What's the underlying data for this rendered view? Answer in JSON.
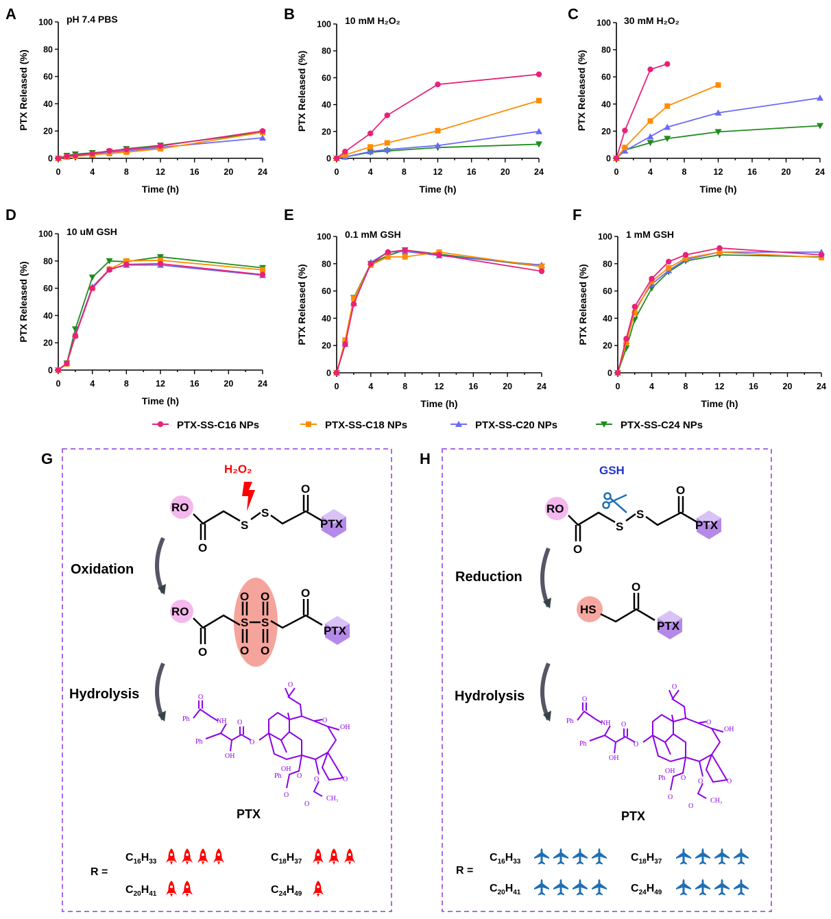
{
  "legend": {
    "position": "bottom",
    "items": [
      {
        "name": "PTX-SS-C16 NPs",
        "color": "#E8217A",
        "marker": "circle"
      },
      {
        "name": "PTX-SS-C18 NPs",
        "color": "#FF8C00",
        "marker": "square"
      },
      {
        "name": "PTX-SS-C20 NPs",
        "color": "#6A6AF5",
        "marker": "triangle-up"
      },
      {
        "name": "PTX-SS-C24 NPs",
        "color": "#1E8C1E",
        "marker": "triangle-down"
      }
    ]
  },
  "chart_data": [
    {
      "panel": "A",
      "type": "line",
      "title": "pH 7.4 PBS",
      "xlabel": "Time (h)",
      "ylabel": "PTX Released (%)",
      "xlim": [
        0,
        24
      ],
      "ylim": [
        0,
        100
      ],
      "xticks": [
        0,
        4,
        8,
        12,
        16,
        20,
        24
      ],
      "yticks": [
        0,
        20,
        40,
        60,
        80,
        100
      ],
      "grid": false,
      "x": [
        0,
        1,
        2,
        4,
        6,
        8,
        12,
        24
      ],
      "series": [
        {
          "name": "PTX-SS-C16 NPs",
          "values": [
            0,
            1.5,
            2,
            3.5,
            5.5,
            6.5,
            9,
            20
          ]
        },
        {
          "name": "PTX-SS-C18 NPs",
          "values": [
            0,
            1,
            1.5,
            2.5,
            3.5,
            4.5,
            7,
            19
          ]
        },
        {
          "name": "PTX-SS-C20 NPs",
          "values": [
            0,
            1,
            2,
            3,
            4.5,
            5.5,
            8,
            15
          ]
        },
        {
          "name": "PTX-SS-C24 NPs",
          "values": [
            0,
            2,
            3,
            4,
            5,
            7,
            9.5,
            19
          ]
        }
      ]
    },
    {
      "panel": "B",
      "type": "line",
      "title": "10 mM H₂O₂",
      "xlabel": "Time (h)",
      "ylabel": "PTX Released (%)",
      "xlim": [
        0,
        24
      ],
      "ylim": [
        0,
        100
      ],
      "xticks": [
        0,
        4,
        8,
        12,
        16,
        20,
        24
      ],
      "yticks": [
        0,
        20,
        40,
        60,
        80,
        100
      ],
      "grid": false,
      "x": [
        0,
        1,
        4,
        6,
        12,
        24
      ],
      "series": [
        {
          "name": "PTX-SS-C16 NPs",
          "values": [
            0,
            5,
            18.5,
            32,
            55,
            62.5
          ]
        },
        {
          "name": "PTX-SS-C18 NPs",
          "values": [
            0,
            2.5,
            8.5,
            11.5,
            20.5,
            43
          ]
        },
        {
          "name": "PTX-SS-C20 NPs",
          "values": [
            0,
            1,
            5,
            6.5,
            9.5,
            20
          ]
        },
        {
          "name": "PTX-SS-C24 NPs",
          "values": [
            0,
            1,
            4.5,
            5.5,
            8,
            10.5
          ]
        }
      ]
    },
    {
      "panel": "C",
      "type": "line",
      "title": "30 mM H₂O₂",
      "xlabel": "Time (h)",
      "ylabel": "PTX Released (%)",
      "xlim": [
        0,
        24
      ],
      "ylim": [
        0,
        100
      ],
      "xticks": [
        0,
        4,
        8,
        12,
        16,
        20,
        24
      ],
      "yticks": [
        0,
        20,
        40,
        60,
        80,
        100
      ],
      "grid": false,
      "x": [
        0,
        1,
        4,
        6,
        12,
        24
      ],
      "series": [
        {
          "name": "PTX-SS-C16 NPs",
          "values": [
            0,
            20.5,
            65.5,
            69.5,
            null,
            null
          ]
        },
        {
          "name": "PTX-SS-C18 NPs",
          "values": [
            0,
            8,
            27.5,
            38.5,
            54,
            null
          ]
        },
        {
          "name": "PTX-SS-C20 NPs",
          "values": [
            0,
            5.5,
            16,
            23,
            33.5,
            44.5
          ]
        },
        {
          "name": "PTX-SS-C24 NPs",
          "values": [
            0,
            6,
            11.5,
            14.5,
            19.5,
            24
          ]
        }
      ]
    },
    {
      "panel": "D",
      "type": "line",
      "title": "10 uM GSH",
      "xlabel": "Time (h)",
      "ylabel": "PTX Released (%)",
      "xlim": [
        0,
        24
      ],
      "ylim": [
        0,
        100
      ],
      "xticks": [
        0,
        4,
        8,
        12,
        16,
        20,
        24
      ],
      "yticks": [
        0,
        20,
        40,
        60,
        80,
        100
      ],
      "grid": false,
      "x": [
        0,
        1,
        2,
        4,
        6,
        8,
        12,
        24
      ],
      "series": [
        {
          "name": "PTX-SS-C16 NPs",
          "values": [
            0,
            5,
            25,
            60,
            73.5,
            77.5,
            78,
            70
          ]
        },
        {
          "name": "PTX-SS-C18 NPs",
          "values": [
            0,
            4.5,
            25,
            60,
            74,
            80,
            80.5,
            73.5
          ]
        },
        {
          "name": "PTX-SS-C20 NPs",
          "values": [
            0,
            5,
            26,
            61,
            74,
            77,
            77,
            69.5
          ]
        },
        {
          "name": "PTX-SS-C24 NPs",
          "values": [
            0,
            5,
            30,
            68,
            80,
            79.5,
            83,
            75
          ]
        }
      ]
    },
    {
      "panel": "E",
      "type": "line",
      "title": "0.1 mM GSH",
      "xlabel": "Time (h)",
      "ylabel": "PTX Released (%)",
      "xlim": [
        0,
        24
      ],
      "ylim": [
        0,
        100
      ],
      "xticks": [
        0,
        4,
        8,
        12,
        16,
        20,
        24
      ],
      "yticks": [
        0,
        20,
        40,
        60,
        80,
        100
      ],
      "grid": false,
      "x": [
        0,
        1,
        2,
        4,
        6,
        8,
        12,
        24
      ],
      "series": [
        {
          "name": "PTX-SS-C16 NPs",
          "values": [
            0,
            21,
            50.5,
            80,
            88.5,
            90,
            86.5,
            74.5
          ]
        },
        {
          "name": "PTX-SS-C18 NPs",
          "values": [
            0,
            24,
            54.5,
            79,
            85,
            85,
            88.5,
            78
          ]
        },
        {
          "name": "PTX-SS-C20 NPs",
          "values": [
            0,
            21,
            51,
            81,
            88.5,
            89,
            86,
            79
          ]
        },
        {
          "name": "PTX-SS-C24 NPs",
          "values": [
            0,
            21,
            55,
            80,
            86,
            90,
            87,
            78
          ]
        }
      ]
    },
    {
      "panel": "F",
      "type": "line",
      "title": "1 mM GSH",
      "xlabel": "Time (h)",
      "ylabel": "PTX Released (%)",
      "xlim": [
        0,
        24
      ],
      "ylim": [
        0,
        100
      ],
      "xticks": [
        0,
        4,
        8,
        12,
        16,
        20,
        24
      ],
      "yticks": [
        0,
        20,
        40,
        60,
        80,
        100
      ],
      "grid": false,
      "x": [
        0,
        1,
        2,
        4,
        6,
        8,
        12,
        24
      ],
      "series": [
        {
          "name": "PTX-SS-C16 NPs",
          "values": [
            0,
            25,
            48.5,
            69,
            81.5,
            86.5,
            91.5,
            86.5
          ]
        },
        {
          "name": "PTX-SS-C18 NPs",
          "values": [
            0,
            22,
            44,
            67,
            77,
            84,
            88.5,
            84.5
          ]
        },
        {
          "name": "PTX-SS-C20 NPs",
          "values": [
            0,
            23,
            46,
            65,
            75,
            83,
            88.5,
            88.5
          ]
        },
        {
          "name": "PTX-SS-C24 NPs",
          "values": [
            0,
            18,
            39,
            62,
            74,
            82,
            86.5,
            85
          ]
        }
      ]
    }
  ],
  "panel_g": {
    "letter": "G",
    "trigger": "H₂O₂",
    "step1": "Oxidation",
    "step2": "Hydrolysis",
    "ro": "RO",
    "s": "S",
    "o": "O",
    "ptx_tag": "PTX",
    "product_label": "PTX",
    "r_label": "R =",
    "rows": [
      {
        "c": "C",
        "c_sub": "16",
        "h": "H",
        "h_sub": "33",
        "icon": "rocket-icon",
        "count": 4
      },
      {
        "c": "C",
        "c_sub": "18",
        "h": "H",
        "h_sub": "37",
        "icon": "rocket-icon",
        "count": 3
      },
      {
        "c": "C",
        "c_sub": "20",
        "h": "H",
        "h_sub": "41",
        "icon": "rocket-icon",
        "count": 2
      },
      {
        "c": "C",
        "c_sub": "24",
        "h": "H",
        "h_sub": "49",
        "icon": "rocket-icon",
        "count": 1
      }
    ],
    "color": "#FF0000"
  },
  "panel_h": {
    "letter": "H",
    "trigger": "GSH",
    "step1": "Reduction",
    "step2": "Hydrolysis",
    "ro": "RO",
    "hs": "HS",
    "s": "S",
    "o": "O",
    "ptx_tag": "PTX",
    "product_label": "PTX",
    "r_label": "R =",
    "rows": [
      {
        "c": "C",
        "c_sub": "16",
        "h": "H",
        "h_sub": "33",
        "icon": "airplane-icon",
        "count": 4
      },
      {
        "c": "C",
        "c_sub": "18",
        "h": "H",
        "h_sub": "37",
        "icon": "airplane-icon",
        "count": 4
      },
      {
        "c": "C",
        "c_sub": "20",
        "h": "H",
        "h_sub": "41",
        "icon": "airplane-icon",
        "count": 4
      },
      {
        "c": "C",
        "c_sub": "24",
        "h": "H",
        "h_sub": "49",
        "icon": "airplane-icon",
        "count": 4
      }
    ],
    "color": "#1F6FB4"
  },
  "ptx_structure": {
    "ph": "Ph",
    "nh": "NH",
    "oh": "OH",
    "o": "O",
    "ch3": "CH₃"
  },
  "colors": {
    "box_border": "#A66BE8",
    "ptx": "#8A00E6",
    "ro_fill": "#F5B8EE",
    "hs_fill": "#F7A7A0",
    "ellipse": "#F5A49C"
  }
}
